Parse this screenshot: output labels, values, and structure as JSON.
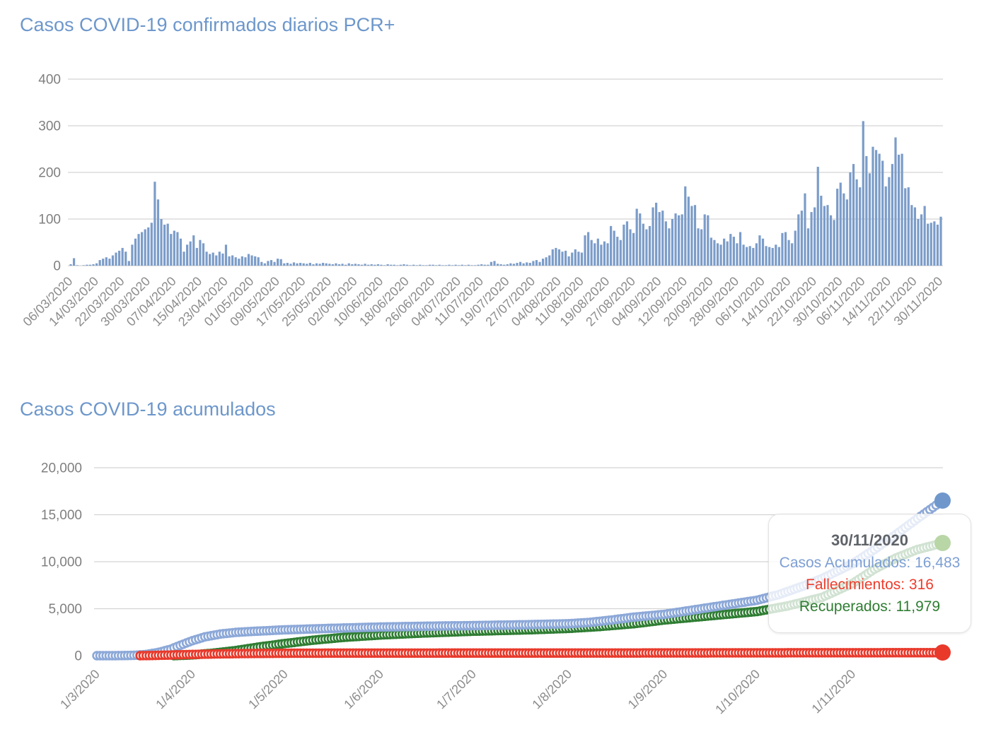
{
  "colors": {
    "title": "#6d97cb",
    "bar": "#7b9cc9",
    "grid": "#d4d4d4",
    "axis_label": "#7f7f7f",
    "tick_label": "#8c8c8c",
    "tooltip_date": "#5f6368"
  },
  "ui": {
    "tooltip": {
      "date": "30/11/2020",
      "lines": [
        {
          "text": "Casos Acumulados: 16,483",
          "color": "#7d9fd4"
        },
        {
          "text": "Fallecimientos: 316",
          "color": "#ef3b2a"
        },
        {
          "text": "Recuperados: 11,979",
          "color": "#2e7d32"
        }
      ]
    }
  },
  "chart_data": [
    {
      "type": "bar",
      "title": "Casos COVID-19 confirmados diarios PCR+",
      "x_start_date": "06/03/2020",
      "x_end_date": "30/11/2020",
      "x_tick_labels": [
        "06/03/2020",
        "14/03/2020",
        "22/03/2020",
        "30/03/2020",
        "07/04/2020",
        "15/04/2020",
        "23/04/2020",
        "01/05/2020",
        "09/05/2020",
        "17/05/2020",
        "25/05/2020",
        "02/06/2020",
        "10/06/2020",
        "18/06/2020",
        "26/06/2020",
        "04/07/2020",
        "11/07/2020",
        "19/07/2020",
        "27/07/2020",
        "04/08/2020",
        "11/08/2020",
        "19/08/2020",
        "27/08/2020",
        "04/09/2020",
        "12/09/2020",
        "20/09/2020",
        "28/09/2020",
        "06/10/2020",
        "14/10/2020",
        "22/10/2020",
        "30/10/2020",
        "06/11/2020",
        "14/11/2020",
        "22/11/2020",
        "30/11/2020"
      ],
      "x_tick_day_indices": [
        0,
        8,
        16,
        24,
        32,
        40,
        48,
        56,
        64,
        72,
        80,
        88,
        96,
        104,
        112,
        120,
        127,
        135,
        143,
        151,
        158,
        166,
        174,
        182,
        190,
        198,
        206,
        214,
        222,
        230,
        238,
        245,
        253,
        261,
        269
      ],
      "y_ticks": [
        0,
        100,
        200,
        300,
        400
      ],
      "ylim": [
        0,
        400
      ],
      "grid": true,
      "values": [
        3,
        16,
        1,
        0,
        1,
        2,
        2,
        3,
        5,
        12,
        15,
        18,
        15,
        22,
        28,
        32,
        38,
        30,
        10,
        45,
        58,
        68,
        72,
        78,
        82,
        92,
        180,
        142,
        100,
        88,
        90,
        68,
        75,
        72,
        58,
        30,
        45,
        52,
        65,
        38,
        55,
        48,
        30,
        25,
        28,
        22,
        30,
        26,
        45,
        20,
        22,
        18,
        15,
        20,
        18,
        25,
        22,
        20,
        18,
        8,
        5,
        10,
        12,
        8,
        15,
        14,
        5,
        6,
        4,
        7,
        5,
        6,
        5,
        4,
        6,
        3,
        5,
        4,
        6,
        5,
        4,
        3,
        5,
        3,
        4,
        2,
        5,
        3,
        4,
        3,
        2,
        4,
        2,
        3,
        2,
        3,
        2,
        1,
        3,
        2,
        2,
        1,
        2,
        3,
        2,
        1,
        2,
        1,
        2,
        1,
        1,
        2,
        2,
        1,
        2,
        1,
        1,
        2,
        1,
        2,
        1,
        2,
        1,
        2,
        1,
        1,
        2,
        3,
        2,
        2,
        8,
        10,
        4,
        3,
        2,
        3,
        5,
        4,
        6,
        8,
        5,
        7,
        6,
        10,
        12,
        8,
        15,
        18,
        22,
        35,
        38,
        35,
        30,
        32,
        20,
        28,
        35,
        30,
        28,
        65,
        72,
        55,
        48,
        58,
        45,
        52,
        48,
        85,
        75,
        62,
        55,
        88,
        95,
        78,
        70,
        122,
        112,
        90,
        78,
        85,
        125,
        135,
        115,
        118,
        95,
        80,
        100,
        112,
        108,
        110,
        170,
        148,
        128,
        130,
        80,
        78,
        110,
        108,
        60,
        55,
        48,
        45,
        58,
        52,
        68,
        62,
        48,
        72,
        45,
        40,
        42,
        38,
        48,
        65,
        58,
        42,
        40,
        38,
        45,
        40,
        70,
        72,
        55,
        48,
        75,
        110,
        118,
        155,
        80,
        115,
        125,
        212,
        150,
        128,
        130,
        108,
        98,
        165,
        178,
        155,
        142,
        200,
        218,
        185,
        168,
        310,
        235,
        198,
        255,
        248,
        240,
        225,
        170,
        190,
        218,
        275,
        238,
        240,
        166,
        168,
        130,
        125,
        100,
        110,
        128,
        90,
        92,
        95,
        88,
        105
      ]
    },
    {
      "type": "scatter",
      "title": "Casos COVID-19 acumulados",
      "x_tick_labels": [
        "1/3/2020",
        "1/4/2020",
        "1/5/2020",
        "1/6/2020",
        "1/7/2020",
        "1/8/2020",
        "1/9/2020",
        "1/10/2020",
        "1/11/2020"
      ],
      "x_tick_day_indices": [
        0,
        31,
        61,
        92,
        122,
        153,
        184,
        214,
        245
      ],
      "days_total": 274,
      "y_ticks": [
        0,
        5000,
        10000,
        15000,
        20000
      ],
      "y_tick_labels": [
        "0",
        "5,000",
        "10,000",
        "15,000",
        "20,000"
      ],
      "ylim": [
        0,
        20000
      ],
      "grid": true,
      "marker": "ring",
      "series": [
        {
          "id": "casos-acumulados",
          "name": "Casos Acumulados",
          "color": "#8ca8d8",
          "end_dot_color": "#6f97cc",
          "final_date": "30/11/2020",
          "final_value": 16483,
          "control_points": [
            [
              0,
              0
            ],
            [
              8,
              5
            ],
            [
              12,
              40
            ],
            [
              16,
              130
            ],
            [
              20,
              350
            ],
            [
              24,
              700
            ],
            [
              27,
              1100
            ],
            [
              31,
              1600
            ],
            [
              35,
              2000
            ],
            [
              40,
              2300
            ],
            [
              45,
              2480
            ],
            [
              50,
              2580
            ],
            [
              61,
              2750
            ],
            [
              75,
              2900
            ],
            [
              92,
              3050
            ],
            [
              110,
              3150
            ],
            [
              122,
              3200
            ],
            [
              140,
              3300
            ],
            [
              153,
              3400
            ],
            [
              160,
              3550
            ],
            [
              167,
              3800
            ],
            [
              174,
              4100
            ],
            [
              184,
              4400
            ],
            [
              194,
              4900
            ],
            [
              204,
              5400
            ],
            [
              214,
              5900
            ],
            [
              221,
              6500
            ],
            [
              228,
              7300
            ],
            [
              235,
              8200
            ],
            [
              245,
              9800
            ],
            [
              252,
              11300
            ],
            [
              259,
              12900
            ],
            [
              266,
              14600
            ],
            [
              274,
              16483
            ]
          ]
        },
        {
          "id": "fallecimientos",
          "name": "Fallecimientos",
          "color": "#e83a2c",
          "end_dot_color": "#e8392b",
          "final_date": "30/11/2020",
          "final_value": 316,
          "control_points": [
            [
              14,
              0
            ],
            [
              18,
              20
            ],
            [
              22,
              50
            ],
            [
              26,
              90
            ],
            [
              31,
              130
            ],
            [
              38,
              180
            ],
            [
              45,
              215
            ],
            [
              52,
              240
            ],
            [
              61,
              258
            ],
            [
              75,
              268
            ],
            [
              92,
              272
            ],
            [
              122,
              276
            ],
            [
              153,
              282
            ],
            [
              184,
              292
            ],
            [
              214,
              302
            ],
            [
              245,
              310
            ],
            [
              274,
              316
            ]
          ]
        },
        {
          "id": "recuperados",
          "name": "Recuperados",
          "color": "#2f7d33",
          "end_dot_color": "#b9d6a6",
          "final_date": "30/11/2020",
          "final_value": 11979,
          "control_points": [
            [
              25,
              0
            ],
            [
              31,
              80
            ],
            [
              38,
              280
            ],
            [
              45,
              550
            ],
            [
              52,
              900
            ],
            [
              61,
              1300
            ],
            [
              70,
              1650
            ],
            [
              80,
              1950
            ],
            [
              92,
              2200
            ],
            [
              105,
              2400
            ],
            [
              122,
              2600
            ],
            [
              140,
              2750
            ],
            [
              153,
              2900
            ],
            [
              163,
              3100
            ],
            [
              174,
              3400
            ],
            [
              184,
              3800
            ],
            [
              194,
              4100
            ],
            [
              204,
              4400
            ],
            [
              214,
              4700
            ],
            [
              224,
              5300
            ],
            [
              235,
              6200
            ],
            [
              245,
              7700
            ],
            [
              252,
              9200
            ],
            [
              259,
              10400
            ],
            [
              266,
              11300
            ],
            [
              274,
              11979
            ]
          ]
        }
      ]
    }
  ]
}
